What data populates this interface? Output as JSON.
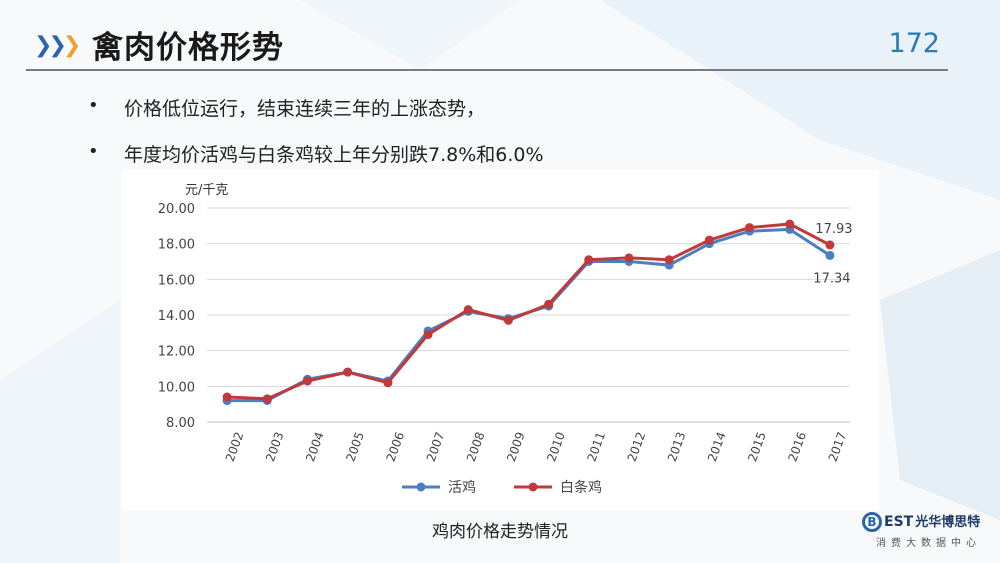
{
  "slide": {
    "title": "禽肉价格形势",
    "page_number": "172",
    "bullets": [
      "价格低位运行，结束连续三年的上涨态势，",
      "年度均价活鸡与白条鸡较上年分别跌7.8%和6.0%"
    ],
    "caption": "鸡肉价格走势情况",
    "logo": {
      "brand": "EST",
      "brand_cn": "光华博思特",
      "subtitle": "消费大数据中心"
    }
  },
  "colors": {
    "accent_blue": "#2b7ab3",
    "chevron_orange": "#f0a030",
    "chevron_blue": "#2d64a8",
    "live_chicken": "#4a7fc1",
    "white_strip": "#c0393b"
  },
  "chart_data": {
    "type": "line",
    "unit_label": "元/千克",
    "x": [
      "2002",
      "2003",
      "2004",
      "2005",
      "2006",
      "2007",
      "2008",
      "2009",
      "2010",
      "2011",
      "2012",
      "2013",
      "2014",
      "2015",
      "2016",
      "2017"
    ],
    "ylim": [
      8,
      20
    ],
    "yticks": [
      "8.00",
      "10.00",
      "12.00",
      "14.00",
      "16.00",
      "18.00",
      "20.00"
    ],
    "grid": true,
    "legend_position": "bottom",
    "series": [
      {
        "name": "活鸡",
        "color": "#4a7fc1",
        "values": [
          9.2,
          9.2,
          10.4,
          10.8,
          10.3,
          13.1,
          14.2,
          13.8,
          14.5,
          17.0,
          17.0,
          16.8,
          18.0,
          18.7,
          18.8,
          17.34
        ]
      },
      {
        "name": "白条鸡",
        "color": "#c0393b",
        "values": [
          9.4,
          9.3,
          10.3,
          10.8,
          10.2,
          12.9,
          14.3,
          13.7,
          14.6,
          17.1,
          17.2,
          17.1,
          18.2,
          18.9,
          19.1,
          17.93
        ]
      }
    ],
    "annotations": [
      "17.93",
      "17.34"
    ]
  }
}
